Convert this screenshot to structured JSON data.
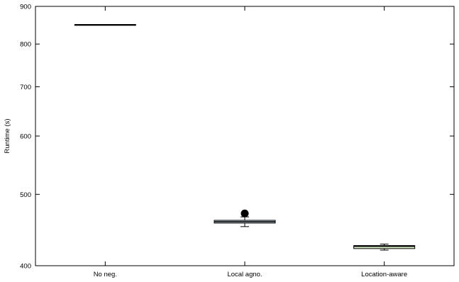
{
  "chart_data": {
    "type": "box",
    "title": "",
    "xlabel": "",
    "ylabel": "Runtime (s)",
    "y_scale": "log",
    "ylim": [
      400,
      900
    ],
    "yticks": [
      400,
      500,
      600,
      700,
      800,
      900
    ],
    "grid": false,
    "categories": [
      "No neg.",
      "Local agno.",
      "Location-aware"
    ],
    "boxes": [
      {
        "category": "No neg.",
        "whisker_low": 850,
        "q1": 850,
        "median": 850,
        "q3": 850,
        "whisker_high": 850,
        "outliers": [],
        "fill": "#ffffff"
      },
      {
        "category": "Local agno.",
        "whisker_low": 452,
        "q1": 457,
        "median": 459,
        "q3": 461,
        "whisker_high": 466,
        "outliers": [
          471
        ],
        "fill": "#c9def3"
      },
      {
        "category": "Location-aware",
        "whisker_low": 420,
        "q1": 422,
        "median": 425,
        "q3": 426,
        "whisker_high": 428,
        "outliers": [],
        "fill": "#d8ecc8"
      }
    ]
  }
}
